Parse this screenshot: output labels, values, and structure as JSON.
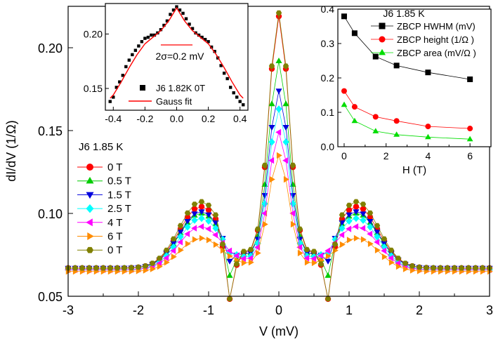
{
  "chart_data": [
    {
      "type": "scatter",
      "xlabel": "V (mV)",
      "ylabel": "dI/dV (1/Ω)",
      "xlim": [
        -3,
        3
      ],
      "ylim": [
        0.05,
        0.225
      ],
      "xticks": [
        -3,
        -2,
        -1,
        0,
        1,
        2,
        3
      ],
      "xtick_labels": [
        "-3",
        "-2",
        "-1",
        "0",
        "1",
        "2",
        "3"
      ],
      "yticks": [
        0.05,
        0.1,
        0.15,
        0.2
      ],
      "ytick_labels": [
        "0.05",
        "0.10",
        "0.15",
        "0.20"
      ],
      "legend_title": "J6   1.85 K",
      "legend_position": "left",
      "grid": false,
      "x_step": 0.1,
      "series": [
        {
          "name": "0 T",
          "color": "#ff0000",
          "marker": "circle",
          "peak": 0.219,
          "bias_peak": 0.104,
          "dip": 0.059,
          "bg": 0.067
        },
        {
          "name": "0.5 T",
          "color": "#00cc00",
          "marker": "triangle-up",
          "peak": 0.192,
          "bias_peak": 0.1,
          "dip": 0.072,
          "bg": 0.067
        },
        {
          "name": "1.5 T",
          "color": "#0000dd",
          "marker": "triangle-down",
          "peak": 0.174,
          "bias_peak": 0.101,
          "dip": 0.081,
          "bg": 0.067
        },
        {
          "name": "2.5 T",
          "color": "#00ffff",
          "marker": "diamond",
          "peak": 0.163,
          "bias_peak": 0.097,
          "dip": 0.085,
          "bg": 0.066
        },
        {
          "name": "4 T",
          "color": "#ff00ff",
          "marker": "triangle-left",
          "peak": 0.149,
          "bias_peak": 0.092,
          "dip": 0.085,
          "bg": 0.066
        },
        {
          "name": "6 T",
          "color": "#ff8c00",
          "marker": "triangle-right",
          "peak": 0.135,
          "bias_peak": 0.085,
          "dip": 0.08,
          "bg": 0.065
        },
        {
          "name": "0 T",
          "color": "#808000",
          "marker": "hexagon",
          "peak": 0.221,
          "bias_peak": 0.107,
          "dip": 0.06,
          "bg": 0.067
        }
      ]
    },
    {
      "type": "scatter",
      "xlim": [
        -0.45,
        0.45
      ],
      "ylim": [
        0.13,
        0.228
      ],
      "xticks": [
        -0.4,
        -0.2,
        0.0,
        0.2,
        0.4
      ],
      "xtick_labels": [
        "-0.4",
        "-0.2",
        "0.0",
        "0.2",
        "0.4"
      ],
      "yticks": [
        0.15,
        0.2
      ],
      "ytick_labels": [
        "0.15",
        "0.20"
      ],
      "annotation": "2σ=0.2 mV",
      "series": [
        {
          "name": "J6 1.82K 0T",
          "color": "#000000",
          "marker": "square",
          "x": [
            -0.42,
            -0.4,
            -0.38,
            -0.36,
            -0.34,
            -0.32,
            -0.3,
            -0.28,
            -0.26,
            -0.24,
            -0.22,
            -0.2,
            -0.18,
            -0.16,
            -0.14,
            -0.12,
            -0.1,
            -0.08,
            -0.06,
            -0.04,
            -0.02,
            0.0,
            0.02,
            0.04,
            0.06,
            0.08,
            0.1,
            0.12,
            0.14,
            0.16,
            0.18,
            0.2,
            0.22,
            0.24,
            0.26,
            0.28,
            0.3,
            0.32,
            0.34,
            0.36,
            0.38,
            0.4,
            0.42
          ],
          "values": [
            0.138,
            0.142,
            0.151,
            0.156,
            0.162,
            0.17,
            0.176,
            0.181,
            0.185,
            0.189,
            0.193,
            0.196,
            0.197,
            0.199,
            0.199,
            0.201,
            0.204,
            0.208,
            0.212,
            0.218,
            0.222,
            0.225,
            0.222,
            0.219,
            0.214,
            0.209,
            0.205,
            0.201,
            0.199,
            0.197,
            0.195,
            0.193,
            0.188,
            0.184,
            0.178,
            0.171,
            0.164,
            0.159,
            0.151,
            0.146,
            0.142,
            0.138,
            0.135
          ]
        },
        {
          "name": "Gauss fit",
          "color": "#ff0000",
          "marker": "line",
          "x": [
            -0.42,
            -0.4,
            -0.35,
            -0.3,
            -0.25,
            -0.2,
            -0.15,
            -0.1,
            -0.05,
            0.0,
            0.05,
            0.1,
            0.15,
            0.2,
            0.25,
            0.3,
            0.35,
            0.4,
            0.42
          ],
          "values": [
            0.141,
            0.144,
            0.156,
            0.169,
            0.181,
            0.191,
            0.197,
            0.203,
            0.212,
            0.224,
            0.212,
            0.203,
            0.197,
            0.191,
            0.181,
            0.169,
            0.156,
            0.144,
            0.141
          ]
        }
      ]
    },
    {
      "type": "line",
      "xlabel": "H (T)",
      "title": "J6   1.85 K",
      "xlim": [
        -0.3,
        7
      ],
      "ylim": [
        0,
        0.4
      ],
      "xticks": [
        0,
        2,
        4,
        6
      ],
      "xtick_labels": [
        "0",
        "2",
        "4",
        "6"
      ],
      "yticks": [
        0.0,
        0.1,
        0.2,
        0.3,
        0.4
      ],
      "ytick_labels": [
        "0.0",
        "0.1",
        "0.2",
        "0.3",
        "0.4"
      ],
      "x": [
        0,
        0.5,
        1.5,
        2.5,
        4,
        6
      ],
      "series": [
        {
          "name": "ZBCP HWHM (mV)",
          "color": "#000000",
          "marker": "square",
          "values": [
            0.379,
            0.33,
            0.262,
            0.236,
            0.216,
            0.196
          ]
        },
        {
          "name": "ZBCP height (1/Ω )",
          "color": "#ff0000",
          "marker": "circle",
          "values": [
            0.162,
            0.116,
            0.087,
            0.075,
            0.059,
            0.053
          ]
        },
        {
          "name": "ZBCP area (mV/Ω )",
          "color": "#00dd00",
          "marker": "triangle-up",
          "values": [
            0.122,
            0.075,
            0.045,
            0.035,
            0.028,
            0.022
          ]
        }
      ]
    }
  ]
}
